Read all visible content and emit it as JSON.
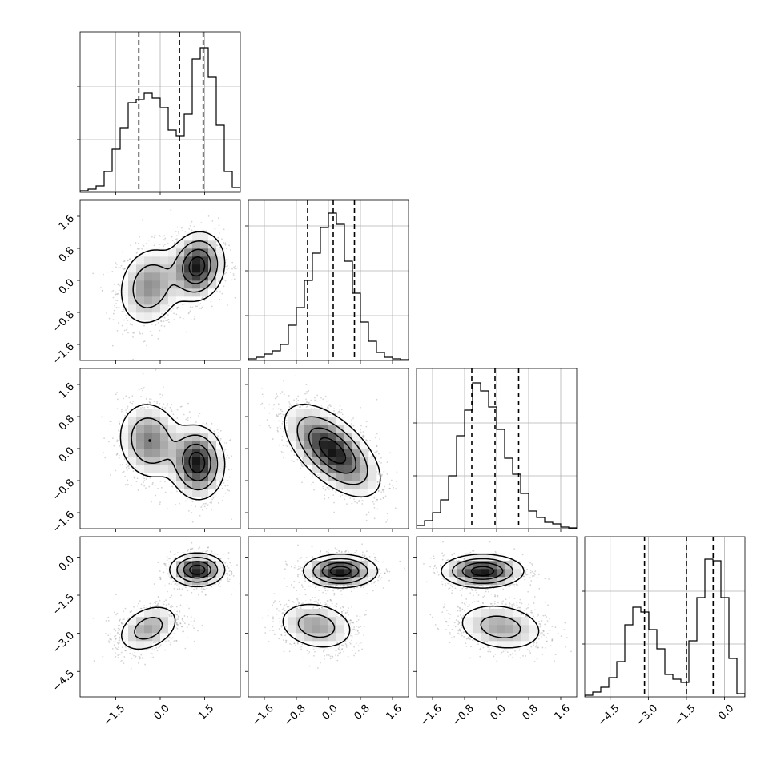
{
  "chart_data": {
    "type": "corner",
    "grid": true,
    "parameters": [
      {
        "range": [
          -2.7,
          2.7
        ],
        "ticks": [
          -1.5,
          0.0,
          1.5
        ],
        "tick_labels": [
          "−1.5",
          "0.0",
          "1.5"
        ]
      },
      {
        "range": [
          -2.0,
          2.0
        ],
        "ticks": [
          -1.6,
          -0.8,
          0.0,
          0.8,
          1.6
        ],
        "tick_labels": [
          "−1.6",
          "−0.8",
          "0.0",
          "0.8",
          "1.6"
        ]
      },
      {
        "range": [
          -2.0,
          2.0
        ],
        "ticks": [
          -1.6,
          -0.8,
          0.0,
          0.8,
          1.6
        ],
        "tick_labels": [
          "−1.6",
          "−0.8",
          "0.0",
          "0.8",
          "1.6"
        ]
      },
      {
        "range": [
          -5.5,
          0.8
        ],
        "ticks": [
          -4.5,
          -3.0,
          -1.5,
          0.0
        ],
        "tick_labels": [
          "−4.5",
          "−3.0",
          "−1.5",
          "0.0"
        ]
      }
    ],
    "histograms": [
      {
        "param": 0,
        "quantiles": [
          -0.72,
          0.65,
          1.45
        ],
        "y_grid": [
          0.33,
          0.66
        ],
        "y_max": 1.0,
        "counts": [
          0.01,
          0.02,
          0.04,
          0.13,
          0.27,
          0.4,
          0.56,
          0.58,
          0.62,
          0.59,
          0.53,
          0.39,
          0.35,
          0.49,
          0.83,
          0.9,
          0.72,
          0.42,
          0.13,
          0.03
        ]
      },
      {
        "param": 1,
        "quantiles": [
          -0.52,
          0.12,
          0.65
        ],
        "y_grid": [
          0.28,
          0.56,
          0.84
        ],
        "y_max": 1.0,
        "counts": [
          0.01,
          0.02,
          0.04,
          0.06,
          0.1,
          0.22,
          0.33,
          0.5,
          0.67,
          0.83,
          0.92,
          0.85,
          0.62,
          0.42,
          0.24,
          0.12,
          0.05,
          0.02,
          0.01,
          0.005
        ]
      },
      {
        "param": 2,
        "quantiles": [
          -0.62,
          -0.04,
          0.55
        ],
        "y_grid": [
          0.33,
          0.66
        ],
        "y_max": 1.0,
        "counts": [
          0.02,
          0.05,
          0.1,
          0.18,
          0.33,
          0.58,
          0.74,
          0.91,
          0.86,
          0.76,
          0.62,
          0.44,
          0.34,
          0.22,
          0.11,
          0.07,
          0.04,
          0.03,
          0.01,
          0.005
        ]
      },
      {
        "param": 3,
        "quantiles": [
          -3.15,
          -1.5,
          -0.45
        ],
        "y_grid": [
          0.33,
          0.66
        ],
        "y_max": 1.0,
        "counts": [
          0.01,
          0.03,
          0.06,
          0.12,
          0.22,
          0.45,
          0.56,
          0.53,
          0.42,
          0.3,
          0.14,
          0.11,
          0.09,
          0.35,
          0.62,
          0.86,
          0.85,
          0.62,
          0.24,
          0.02
        ]
      }
    ],
    "pairs": [
      {
        "x_param": 0,
        "y_param": 1,
        "components": [
          {
            "mean": [
              -0.35,
              -0.15
            ],
            "sd": [
              0.55,
              0.52
            ],
            "rho": 0.15,
            "weight": 0.45
          },
          {
            "mean": [
              1.25,
              0.35
            ],
            "sd": [
              0.45,
              0.42
            ],
            "rho": 0.1,
            "weight": 0.55
          }
        ]
      },
      {
        "x_param": 0,
        "y_param": 2,
        "components": [
          {
            "mean": [
              -0.35,
              0.2
            ],
            "sd": [
              0.55,
              0.5
            ],
            "rho": -0.1,
            "weight": 0.45
          },
          {
            "mean": [
              1.25,
              -0.35
            ],
            "sd": [
              0.45,
              0.45
            ],
            "rho": -0.05,
            "weight": 0.55
          }
        ]
      },
      {
        "x_param": 1,
        "y_param": 2,
        "components": [
          {
            "mean": [
              0.1,
              -0.05
            ],
            "sd": [
              0.58,
              0.56
            ],
            "rho": -0.6,
            "weight": 1.0
          }
        ]
      },
      {
        "x_param": 0,
        "y_param": 3,
        "components": [
          {
            "mean": [
              -0.4,
              -2.8
            ],
            "sd": [
              0.55,
              0.5
            ],
            "rho": 0.35,
            "weight": 0.45
          },
          {
            "mean": [
              1.25,
              -0.5
            ],
            "sd": [
              0.45,
              0.32
            ],
            "rho": 0.0,
            "weight": 0.55
          }
        ]
      },
      {
        "x_param": 1,
        "y_param": 3,
        "components": [
          {
            "mean": [
              -0.3,
              -2.7
            ],
            "sd": [
              0.5,
              0.5
            ],
            "rho": -0.2,
            "weight": 0.45
          },
          {
            "mean": [
              0.3,
              -0.55
            ],
            "sd": [
              0.45,
              0.32
            ],
            "rho": 0.0,
            "weight": 0.55
          }
        ]
      },
      {
        "x_param": 2,
        "y_param": 3,
        "components": [
          {
            "mean": [
              0.1,
              -2.75
            ],
            "sd": [
              0.58,
              0.5
            ],
            "rho": -0.2,
            "weight": 0.45
          },
          {
            "mean": [
              -0.35,
              -0.55
            ],
            "sd": [
              0.5,
              0.32
            ],
            "rho": 0.0,
            "weight": 0.55
          }
        ]
      }
    ]
  }
}
